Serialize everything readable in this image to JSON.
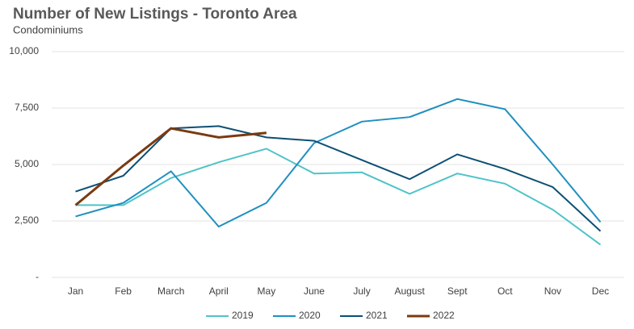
{
  "chart_data": {
    "type": "line",
    "title": "Number of New Listings - Toronto Area",
    "subtitle": "Condominiums",
    "categories": [
      "Jan",
      "Feb",
      "March",
      "April",
      "May",
      "June",
      "July",
      "August",
      "Sept",
      "Oct",
      "Nov",
      "Dec"
    ],
    "series": [
      {
        "name": "2019",
        "color": "#4fc3c8",
        "values": [
          3200,
          3200,
          4400,
          5100,
          5700,
          4600,
          4650,
          3700,
          4600,
          4150,
          3000,
          1450
        ]
      },
      {
        "name": "2020",
        "color": "#1f8fbf",
        "values": [
          2700,
          3300,
          4700,
          2250,
          3300,
          5950,
          6900,
          7100,
          7900,
          7450,
          5000,
          2450
        ]
      },
      {
        "name": "2021",
        "color": "#0c4f73",
        "values": [
          3800,
          4500,
          6600,
          6700,
          6200,
          6050,
          5200,
          4350,
          5450,
          4800,
          4000,
          2050
        ]
      },
      {
        "name": "2022",
        "color": "#7b3a10",
        "values": [
          3200,
          4950,
          6600,
          6200,
          6400,
          null,
          null,
          null,
          null,
          null,
          null,
          null
        ]
      }
    ],
    "ylim": [
      0,
      10000
    ],
    "yticks": [
      {
        "value": 0,
        "label": "-"
      },
      {
        "value": 2500,
        "label": "2,500"
      },
      {
        "value": 5000,
        "label": "5,000"
      },
      {
        "value": 7500,
        "label": "7,500"
      },
      {
        "value": 10000,
        "label": "10,000"
      }
    ],
    "grid": true,
    "legend": "bottom"
  }
}
